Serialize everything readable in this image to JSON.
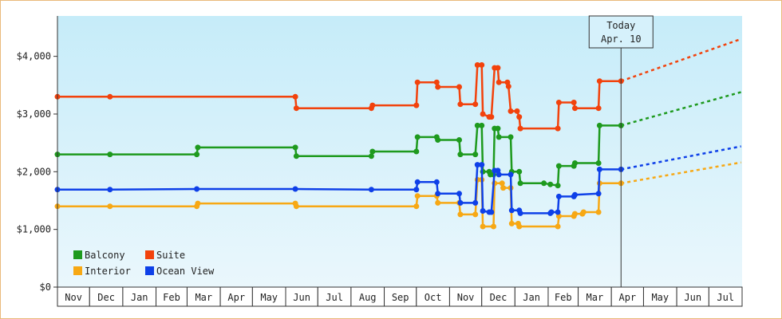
{
  "chart_data": {
    "type": "line",
    "y_unit_prefix": "$",
    "ylim": [
      0,
      4700
    ],
    "y_ticks": [
      {
        "value": 0,
        "label": "$0"
      },
      {
        "value": 1000,
        "label": "$1,000"
      },
      {
        "value": 2000,
        "label": "$2,000"
      },
      {
        "value": 3000,
        "label": "$3,000"
      },
      {
        "value": 4000,
        "label": "$4,000"
      }
    ],
    "x_range": [
      "2011-11-01",
      "2013-07-31"
    ],
    "x_months": [
      "Nov",
      "Dec",
      "Jan",
      "Feb",
      "Mar",
      "Apr",
      "May",
      "Jun",
      "Jul",
      "Aug",
      "Sep",
      "Oct",
      "Nov",
      "Dec",
      "Jan",
      "Feb",
      "Mar",
      "Apr",
      "May",
      "Jun",
      "Jul"
    ],
    "today": {
      "label": "Today",
      "date_label": "Apr. 10",
      "date": "2013-04-10"
    },
    "legend_placement": "bottom-left",
    "series": [
      {
        "name": "Balcony",
        "color": "#1e9a1e",
        "points": [
          [
            "2011-11-01",
            2300
          ],
          [
            "2011-12-20",
            2300
          ],
          [
            "2012-03-10",
            2300
          ],
          [
            "2012-03-11",
            2420
          ],
          [
            "2012-06-10",
            2420
          ],
          [
            "2012-06-11",
            2270
          ],
          [
            "2012-08-20",
            2270
          ],
          [
            "2012-08-21",
            2350
          ],
          [
            "2012-10-01",
            2350
          ],
          [
            "2012-10-02",
            2600
          ],
          [
            "2012-10-20",
            2600
          ],
          [
            "2012-10-21",
            2550
          ],
          [
            "2012-11-10",
            2550
          ],
          [
            "2012-11-11",
            2300
          ],
          [
            "2012-11-25",
            2300
          ],
          [
            "2012-11-27",
            2800
          ],
          [
            "2012-12-01",
            2800
          ],
          [
            "2012-12-02",
            2000
          ],
          [
            "2012-12-08",
            2000
          ],
          [
            "2012-12-09",
            1950
          ],
          [
            "2012-12-12",
            1950
          ],
          [
            "2012-12-13",
            2750
          ],
          [
            "2012-12-16",
            2750
          ],
          [
            "2012-12-17",
            2600
          ],
          [
            "2012-12-28",
            2600
          ],
          [
            "2012-12-29",
            2000
          ],
          [
            "2013-01-05",
            2000
          ],
          [
            "2013-01-06",
            1800
          ],
          [
            "2013-01-28",
            1800
          ],
          [
            "2013-02-03",
            1780
          ],
          [
            "2013-02-10",
            1760
          ],
          [
            "2013-02-11",
            2100
          ],
          [
            "2013-02-25",
            2100
          ],
          [
            "2013-02-26",
            2150
          ],
          [
            "2013-03-20",
            2150
          ],
          [
            "2013-03-21",
            2800
          ],
          [
            "2013-04-10",
            2800
          ]
        ],
        "projection": [
          [
            "2013-04-10",
            2800
          ],
          [
            "2013-07-31",
            3380
          ]
        ]
      },
      {
        "name": "Suite",
        "color": "#f2420c",
        "points": [
          [
            "2011-11-01",
            3300
          ],
          [
            "2011-12-20",
            3300
          ],
          [
            "2012-06-10",
            3300
          ],
          [
            "2012-06-11",
            3100
          ],
          [
            "2012-08-20",
            3100
          ],
          [
            "2012-08-21",
            3150
          ],
          [
            "2012-10-01",
            3150
          ],
          [
            "2012-10-02",
            3550
          ],
          [
            "2012-10-20",
            3550
          ],
          [
            "2012-10-21",
            3470
          ],
          [
            "2012-11-10",
            3470
          ],
          [
            "2012-11-11",
            3170
          ],
          [
            "2012-11-25",
            3170
          ],
          [
            "2012-11-27",
            3850
          ],
          [
            "2012-12-01",
            3850
          ],
          [
            "2012-12-02",
            3000
          ],
          [
            "2012-12-08",
            2950
          ],
          [
            "2012-12-10",
            2950
          ],
          [
            "2012-12-13",
            3800
          ],
          [
            "2012-12-16",
            3800
          ],
          [
            "2012-12-17",
            3550
          ],
          [
            "2012-12-25",
            3550
          ],
          [
            "2012-12-26",
            3480
          ],
          [
            "2012-12-28",
            3050
          ],
          [
            "2013-01-03",
            3050
          ],
          [
            "2013-01-05",
            2950
          ],
          [
            "2013-01-06",
            2750
          ],
          [
            "2013-02-10",
            2750
          ],
          [
            "2013-02-11",
            3200
          ],
          [
            "2013-02-25",
            3200
          ],
          [
            "2013-02-26",
            3100
          ],
          [
            "2013-03-20",
            3100
          ],
          [
            "2013-03-21",
            3570
          ],
          [
            "2013-04-10",
            3570
          ]
        ],
        "projection": [
          [
            "2013-04-10",
            3570
          ],
          [
            "2013-07-31",
            4300
          ]
        ]
      },
      {
        "name": "Interior",
        "color": "#f7a814",
        "points": [
          [
            "2011-11-01",
            1400
          ],
          [
            "2011-12-20",
            1400
          ],
          [
            "2012-03-10",
            1400
          ],
          [
            "2012-03-11",
            1450
          ],
          [
            "2012-06-10",
            1450
          ],
          [
            "2012-06-11",
            1400
          ],
          [
            "2012-10-01",
            1400
          ],
          [
            "2012-10-02",
            1580
          ],
          [
            "2012-10-20",
            1580
          ],
          [
            "2012-10-21",
            1460
          ],
          [
            "2012-11-10",
            1460
          ],
          [
            "2012-11-11",
            1260
          ],
          [
            "2012-11-25",
            1260
          ],
          [
            "2012-11-27",
            1860
          ],
          [
            "2012-12-01",
            1860
          ],
          [
            "2012-12-02",
            1050
          ],
          [
            "2012-12-12",
            1050
          ],
          [
            "2012-12-13",
            1800
          ],
          [
            "2012-12-20",
            1800
          ],
          [
            "2012-12-21",
            1720
          ],
          [
            "2012-12-28",
            1720
          ],
          [
            "2012-12-29",
            1100
          ],
          [
            "2013-01-04",
            1100
          ],
          [
            "2013-01-05",
            1050
          ],
          [
            "2013-02-10",
            1050
          ],
          [
            "2013-02-11",
            1230
          ],
          [
            "2013-02-25",
            1230
          ],
          [
            "2013-02-26",
            1270
          ],
          [
            "2013-03-05",
            1270
          ],
          [
            "2013-03-06",
            1300
          ],
          [
            "2013-03-20",
            1300
          ],
          [
            "2013-03-21",
            1800
          ],
          [
            "2013-04-10",
            1800
          ]
        ],
        "projection": [
          [
            "2013-04-10",
            1800
          ],
          [
            "2013-07-31",
            2160
          ]
        ]
      },
      {
        "name": "Ocean View",
        "color": "#0e40e8",
        "points": [
          [
            "2011-11-01",
            1690
          ],
          [
            "2011-12-20",
            1690
          ],
          [
            "2012-03-10",
            1700
          ],
          [
            "2012-06-10",
            1700
          ],
          [
            "2012-08-20",
            1690
          ],
          [
            "2012-10-01",
            1690
          ],
          [
            "2012-10-02",
            1820
          ],
          [
            "2012-10-20",
            1820
          ],
          [
            "2012-10-21",
            1620
          ],
          [
            "2012-11-10",
            1620
          ],
          [
            "2012-11-11",
            1460
          ],
          [
            "2012-11-25",
            1460
          ],
          [
            "2012-11-27",
            2120
          ],
          [
            "2012-12-01",
            2120
          ],
          [
            "2012-12-02",
            1320
          ],
          [
            "2012-12-08",
            1300
          ],
          [
            "2012-12-10",
            1300
          ],
          [
            "2012-12-13",
            2020
          ],
          [
            "2012-12-16",
            2020
          ],
          [
            "2012-12-17",
            1950
          ],
          [
            "2012-12-28",
            1950
          ],
          [
            "2012-12-29",
            1330
          ],
          [
            "2013-01-05",
            1330
          ],
          [
            "2013-01-06",
            1280
          ],
          [
            "2013-02-03",
            1280
          ],
          [
            "2013-02-04",
            1300
          ],
          [
            "2013-02-10",
            1300
          ],
          [
            "2013-02-11",
            1570
          ],
          [
            "2013-02-25",
            1570
          ],
          [
            "2013-02-26",
            1600
          ],
          [
            "2013-03-20",
            1620
          ],
          [
            "2013-03-21",
            2040
          ],
          [
            "2013-04-10",
            2040
          ]
        ],
        "projection": [
          [
            "2013-04-10",
            2040
          ],
          [
            "2013-07-31",
            2440
          ]
        ]
      }
    ],
    "legend_order": [
      "Balcony",
      "Suite",
      "Interior",
      "Ocean View"
    ]
  }
}
